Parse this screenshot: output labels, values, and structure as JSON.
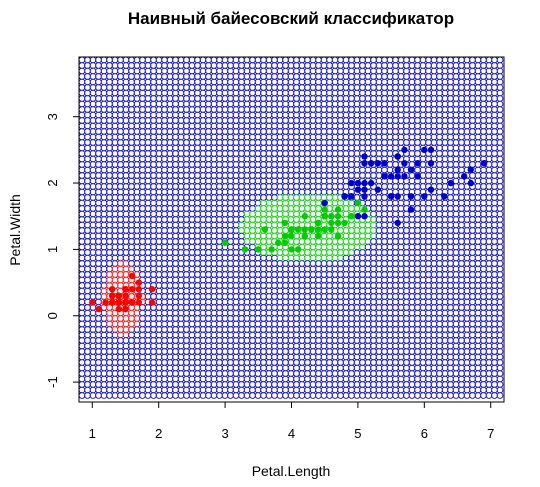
{
  "chart_data": {
    "type": "scatter",
    "title": "Наивный байесовский классификатор",
    "xlabel": "Petal.Length",
    "ylabel": "Petal.Width",
    "xlim": [
      0.8,
      7.2
    ],
    "ylim": [
      -1.3,
      3.9
    ],
    "xticks": [
      "1",
      "2",
      "3",
      "4",
      "5",
      "6",
      "7"
    ],
    "yticks": [
      "-1",
      "0",
      "1",
      "2",
      "3"
    ],
    "grid": false,
    "legend": "none",
    "background_regions": {
      "description": "class decision regions drawn as grid of open circles",
      "colors": {
        "setosa": "#ff0000",
        "versicolor": "#00cc00",
        "virginica": "#0000cc"
      },
      "grid_x": [
        0.8,
        7.2
      ],
      "grid_y": [
        -1.3,
        3.9
      ]
    },
    "series": [
      {
        "color": "#ff0000",
        "points": [
          [
            1.4,
            0.2
          ],
          [
            1.4,
            0.2
          ],
          [
            1.3,
            0.2
          ],
          [
            1.5,
            0.2
          ],
          [
            1.4,
            0.2
          ],
          [
            1.7,
            0.4
          ],
          [
            1.4,
            0.3
          ],
          [
            1.5,
            0.2
          ],
          [
            1.4,
            0.2
          ],
          [
            1.5,
            0.1
          ],
          [
            1.5,
            0.2
          ],
          [
            1.6,
            0.2
          ],
          [
            1.4,
            0.1
          ],
          [
            1.1,
            0.1
          ],
          [
            1.2,
            0.2
          ],
          [
            1.5,
            0.4
          ],
          [
            1.3,
            0.4
          ],
          [
            1.4,
            0.3
          ],
          [
            1.7,
            0.3
          ],
          [
            1.5,
            0.3
          ],
          [
            1.7,
            0.2
          ],
          [
            1.5,
            0.4
          ],
          [
            1.0,
            0.2
          ],
          [
            1.7,
            0.5
          ],
          [
            1.9,
            0.2
          ],
          [
            1.6,
            0.2
          ],
          [
            1.6,
            0.4
          ],
          [
            1.5,
            0.2
          ],
          [
            1.4,
            0.2
          ],
          [
            1.6,
            0.2
          ],
          [
            1.6,
            0.2
          ],
          [
            1.5,
            0.4
          ],
          [
            1.5,
            0.1
          ],
          [
            1.4,
            0.2
          ],
          [
            1.5,
            0.2
          ],
          [
            1.2,
            0.2
          ],
          [
            1.3,
            0.2
          ],
          [
            1.4,
            0.1
          ],
          [
            1.3,
            0.2
          ],
          [
            1.5,
            0.2
          ],
          [
            1.3,
            0.3
          ],
          [
            1.3,
            0.3
          ],
          [
            1.3,
            0.2
          ],
          [
            1.6,
            0.6
          ],
          [
            1.9,
            0.4
          ],
          [
            1.4,
            0.3
          ],
          [
            1.6,
            0.2
          ],
          [
            1.4,
            0.2
          ],
          [
            1.5,
            0.2
          ],
          [
            1.4,
            0.2
          ]
        ]
      },
      {
        "color": "#00cc00",
        "points": [
          [
            4.7,
            1.4
          ],
          [
            4.5,
            1.5
          ],
          [
            4.9,
            1.5
          ],
          [
            4.0,
            1.3
          ],
          [
            4.6,
            1.5
          ],
          [
            4.5,
            1.3
          ],
          [
            4.7,
            1.6
          ],
          [
            3.3,
            1.0
          ],
          [
            4.6,
            1.3
          ],
          [
            3.9,
            1.4
          ],
          [
            3.5,
            1.0
          ],
          [
            4.2,
            1.5
          ],
          [
            4.0,
            1.0
          ],
          [
            4.7,
            1.4
          ],
          [
            3.6,
            1.3
          ],
          [
            4.4,
            1.4
          ],
          [
            4.5,
            1.5
          ],
          [
            4.1,
            1.0
          ],
          [
            4.5,
            1.5
          ],
          [
            3.9,
            1.1
          ],
          [
            4.8,
            1.8
          ],
          [
            4.0,
            1.3
          ],
          [
            4.9,
            1.5
          ],
          [
            4.7,
            1.2
          ],
          [
            4.3,
            1.3
          ],
          [
            4.4,
            1.4
          ],
          [
            4.8,
            1.4
          ],
          [
            5.0,
            1.7
          ],
          [
            4.5,
            1.5
          ],
          [
            3.5,
            1.0
          ],
          [
            3.8,
            1.1
          ],
          [
            3.7,
            1.0
          ],
          [
            3.9,
            1.2
          ],
          [
            5.1,
            1.6
          ],
          [
            4.5,
            1.5
          ],
          [
            4.5,
            1.6
          ],
          [
            4.7,
            1.5
          ],
          [
            4.4,
            1.3
          ],
          [
            4.1,
            1.3
          ],
          [
            4.0,
            1.3
          ],
          [
            4.4,
            1.2
          ],
          [
            4.6,
            1.4
          ],
          [
            4.0,
            1.2
          ],
          [
            3.3,
            1.0
          ],
          [
            4.2,
            1.3
          ],
          [
            4.2,
            1.2
          ],
          [
            4.2,
            1.3
          ],
          [
            4.3,
            1.3
          ],
          [
            3.0,
            1.1
          ],
          [
            4.1,
            1.3
          ]
        ]
      },
      {
        "color": "#0000cc",
        "points": [
          [
            6.0,
            2.5
          ],
          [
            5.1,
            1.9
          ],
          [
            5.9,
            2.1
          ],
          [
            5.6,
            1.8
          ],
          [
            5.8,
            2.2
          ],
          [
            6.6,
            2.1
          ],
          [
            4.5,
            1.7
          ],
          [
            6.3,
            1.8
          ],
          [
            5.8,
            1.8
          ],
          [
            6.1,
            2.5
          ],
          [
            5.1,
            2.0
          ],
          [
            5.3,
            1.9
          ],
          [
            5.5,
            2.1
          ],
          [
            5.0,
            2.0
          ],
          [
            5.1,
            2.4
          ],
          [
            5.3,
            2.3
          ],
          [
            5.5,
            1.8
          ],
          [
            6.7,
            2.2
          ],
          [
            6.9,
            2.3
          ],
          [
            5.0,
            1.5
          ],
          [
            5.7,
            2.3
          ],
          [
            4.9,
            2.0
          ],
          [
            6.7,
            2.0
          ],
          [
            4.9,
            1.8
          ],
          [
            5.7,
            2.1
          ],
          [
            6.0,
            1.8
          ],
          [
            4.8,
            1.8
          ],
          [
            4.9,
            1.8
          ],
          [
            5.6,
            2.1
          ],
          [
            5.8,
            1.6
          ],
          [
            6.1,
            1.9
          ],
          [
            6.4,
            2.0
          ],
          [
            5.6,
            2.2
          ],
          [
            5.1,
            1.5
          ],
          [
            5.6,
            1.4
          ],
          [
            6.1,
            2.3
          ],
          [
            5.6,
            2.4
          ],
          [
            5.5,
            1.8
          ],
          [
            4.8,
            1.8
          ],
          [
            5.4,
            2.1
          ],
          [
            5.6,
            2.4
          ],
          [
            5.1,
            2.3
          ],
          [
            5.9,
            2.3
          ],
          [
            5.7,
            2.5
          ],
          [
            5.2,
            2.3
          ],
          [
            5.0,
            1.9
          ],
          [
            5.2,
            2.0
          ],
          [
            5.4,
            2.3
          ],
          [
            5.1,
            1.8
          ]
        ]
      }
    ]
  }
}
